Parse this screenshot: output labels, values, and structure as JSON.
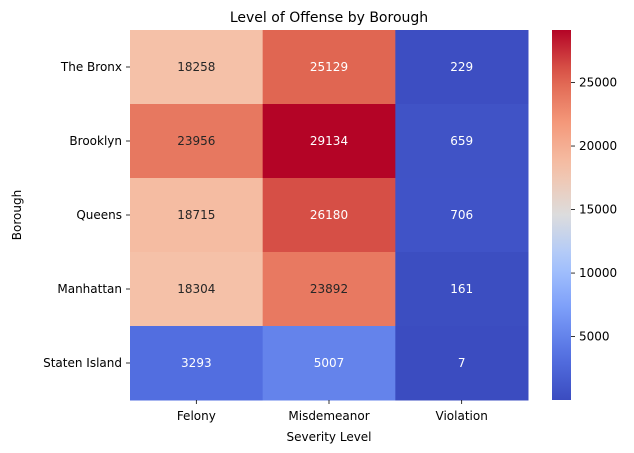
{
  "chart_data": {
    "type": "heatmap",
    "title": "Level of Offense by Borough",
    "xlabel": "Severity Level",
    "ylabel": "Borough",
    "x_categories": [
      "Felony",
      "Misdemeanor",
      "Violation"
    ],
    "y_categories": [
      "The Bronx",
      "Brooklyn",
      "Queens",
      "Manhattan",
      "Staten Island"
    ],
    "values": [
      [
        18258,
        25129,
        229
      ],
      [
        23956,
        29134,
        659
      ],
      [
        18715,
        26180,
        706
      ],
      [
        18304,
        23892,
        161
      ],
      [
        3293,
        5007,
        7
      ]
    ],
    "colormap": "coolwarm",
    "vmin": 7,
    "vmax": 29134,
    "colorbar_ticks": [
      5000,
      10000,
      15000,
      20000,
      25000
    ]
  }
}
